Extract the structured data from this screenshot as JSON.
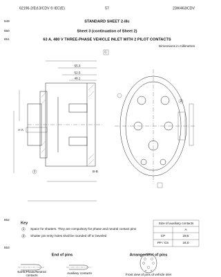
{
  "header": {
    "left": "62196-2/Ed.3/CDV © IEC(E)",
    "page": "57",
    "right": "23H/463/CDV"
  },
  "line_numbers": [
    "649",
    "650",
    "651",
    "652",
    "653"
  ],
  "title": {
    "standard_sheet": "STANDARD SHEET 2-IIIc",
    "sheet": "Sheet 3 (continuation of Sheet 2)",
    "main": "63 A, 480 V THREE-PHASE VEHICLE INLET WITH 2 PILOT CONTACTS",
    "units": "Dimensions in millimetres"
  },
  "drawing": {
    "labels": [
      "C",
      "55.3",
      "52.5",
      "48.1",
      "B-B",
      "A-A",
      "1",
      "2"
    ]
  },
  "key": {
    "title": "Key",
    "items": [
      {
        "marker": "1",
        "text": "Space for shutters. They are compulsory for phase and neutral contact pins"
      },
      {
        "marker": "2",
        "text": "Shutter pin entry holes shall be rounded off or beveled"
      }
    ]
  },
  "aux_table": {
    "caption": "Size of auxiliary contacts",
    "header": "A",
    "rows": [
      [
        "CP",
        "29,5"
      ],
      [
        "PP / CS",
        "34,0"
      ]
    ]
  },
  "pins": {
    "end_title": "End of pins",
    "arrangement_title": "Arrangement of pins",
    "captions": [
      [
        "Earth/Phase/Neutral",
        "contacts"
      ],
      "Auxiliary contacts",
      "Front view of pins of vehicle inlet"
    ]
  }
}
